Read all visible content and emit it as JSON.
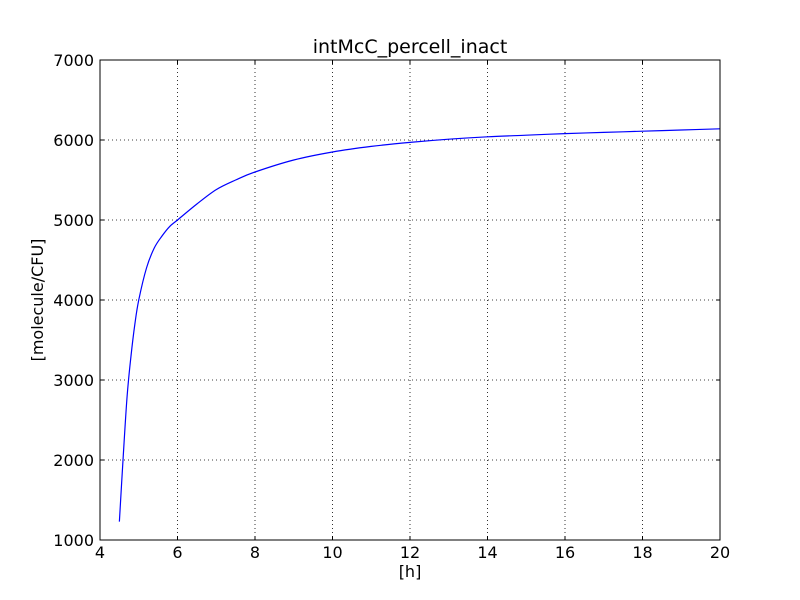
{
  "chart_data": {
    "type": "line",
    "title": "intMcC_percell_inact",
    "xlabel": "[h]",
    "ylabel": "[molecule/CFU]",
    "xlim": [
      4,
      20
    ],
    "ylim": [
      1000,
      7000
    ],
    "xticks": [
      4,
      6,
      8,
      10,
      12,
      14,
      16,
      18,
      20
    ],
    "yticks": [
      1000,
      2000,
      3000,
      4000,
      5000,
      6000,
      7000
    ],
    "grid": true,
    "line_color": "#0000ff",
    "series": [
      {
        "x": [
          4.5,
          4.6,
          4.7,
          4.8,
          4.9,
          5.0,
          5.2,
          5.4,
          5.6,
          5.8,
          6.0,
          6.5,
          7.0,
          7.5,
          8.0,
          9.0,
          10.0,
          11.0,
          12.0,
          13.0,
          14.0,
          15.0,
          16.0,
          17.0,
          18.0,
          19.0,
          20.0
        ],
        "y": [
          1230,
          2050,
          2800,
          3300,
          3700,
          4000,
          4400,
          4650,
          4800,
          4920,
          5000,
          5200,
          5380,
          5500,
          5600,
          5750,
          5850,
          5920,
          5970,
          6010,
          6040,
          6060,
          6080,
          6095,
          6110,
          6125,
          6140
        ]
      }
    ]
  }
}
